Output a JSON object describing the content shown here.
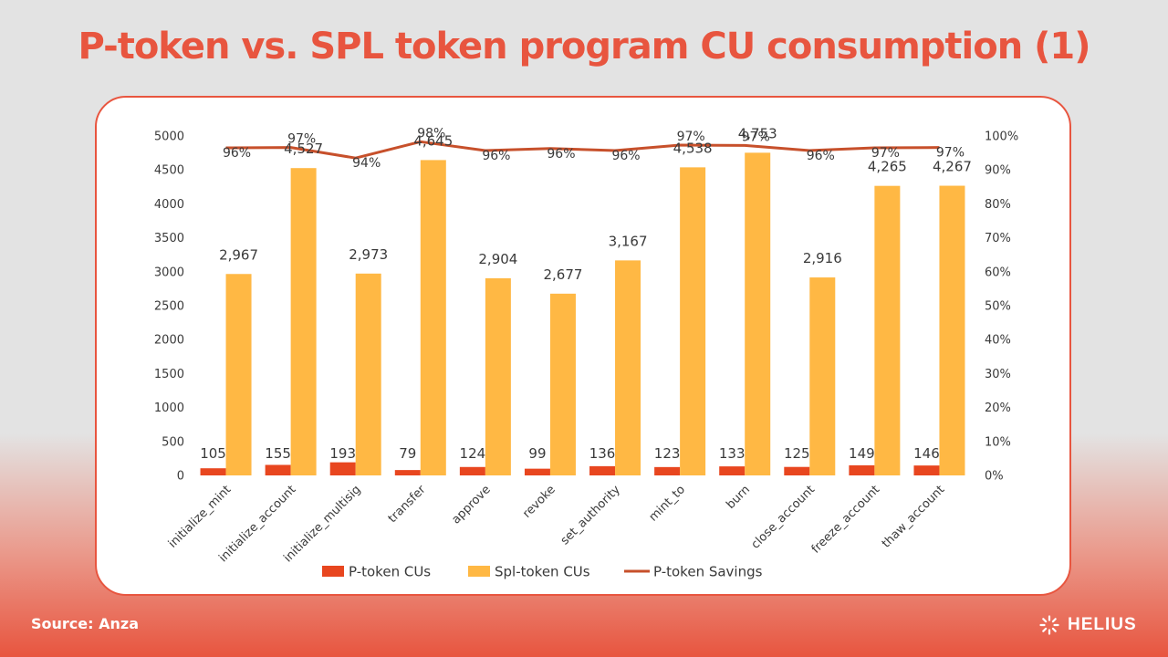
{
  "slide": {
    "title": "P-token vs. SPL token program CU consumption (1)",
    "source": "Source: Anza",
    "brand": "HELIUS",
    "brand_icon": "helius-sun-icon"
  },
  "colors": {
    "accent": "#e8553f",
    "ptoken": "#e8461f",
    "spl": "#ffb844",
    "savings": "#c7502b",
    "text": "#3a3a3a"
  },
  "chart_data": {
    "type": "bar",
    "categories": [
      "initialize_mint",
      "initialize_account",
      "initialize_multisig",
      "transfer",
      "approve",
      "revoke",
      "set_authority",
      "mint_to",
      "burn",
      "close_account",
      "freeze_account",
      "thaw_account"
    ],
    "series": [
      {
        "name": "P-token CUs",
        "type": "bar",
        "axis": "left",
        "values": [
          105,
          155,
          193,
          79,
          124,
          99,
          136,
          123,
          133,
          125,
          149,
          146
        ],
        "labels": [
          "105",
          "155",
          "193",
          "79",
          "124",
          "99",
          "136",
          "123",
          "133",
          "125",
          "149",
          "146"
        ]
      },
      {
        "name": "Spl-token CUs",
        "type": "bar",
        "axis": "left",
        "values": [
          2967,
          4527,
          2973,
          4645,
          2904,
          2677,
          3167,
          4538,
          4753,
          2916,
          4265,
          4267
        ],
        "labels": [
          "2,967",
          "4,527",
          "2,973",
          "4,645",
          "2,904",
          "2,677",
          "3,167",
          "4,538",
          "4,753",
          "2,916",
          "4,265",
          "4,267"
        ]
      },
      {
        "name": "P-token Savings",
        "type": "line",
        "axis": "right",
        "values": [
          96.5,
          96.6,
          93.5,
          98.3,
          95.7,
          96.3,
          95.7,
          97.3,
          97.2,
          95.7,
          96.5,
          96.6
        ],
        "labels": [
          "96%",
          "97%",
          "94%",
          "98%",
          "96%",
          "96%",
          "96%",
          "97%",
          "97%",
          "96%",
          "97%",
          "97%"
        ]
      }
    ],
    "ylim": [
      0,
      5000
    ],
    "yticks": [
      "0",
      "500",
      "1000",
      "1500",
      "2000",
      "2500",
      "3000",
      "3500",
      "4000",
      "4500",
      "5000"
    ],
    "y2lim": [
      0,
      100
    ],
    "y2ticks": [
      "0%",
      "10%",
      "20%",
      "30%",
      "40%",
      "50%",
      "60%",
      "70%",
      "80%",
      "90%",
      "100%"
    ],
    "xlabel": "",
    "ylabel": "",
    "grid": false,
    "legend": "bottom"
  }
}
